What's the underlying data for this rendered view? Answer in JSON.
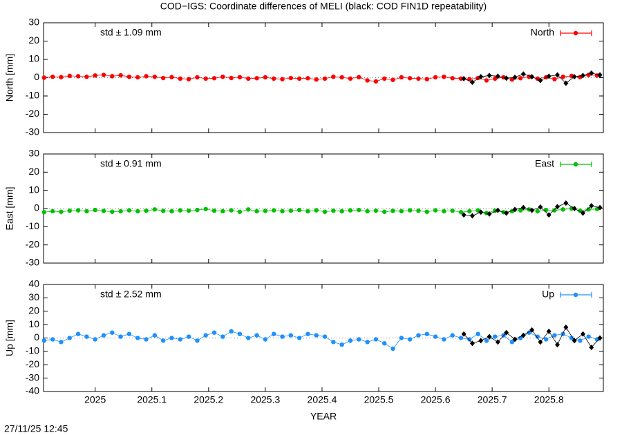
{
  "footer": "27/11/25 12:45",
  "chart_data": [
    {
      "type": "line",
      "title": "COD−IGS: Coordinate differences of MELI (black: COD FIN1D repeatability)",
      "ylabel": "North [mm]",
      "annotation": "std ± 1.09 mm",
      "annotation_color": "#ff0000",
      "xlim": [
        2024.909,
        2025.896
      ],
      "xticks": [
        2025,
        2025.1,
        2025.2,
        2025.3,
        2025.4,
        2025.5,
        2025.6,
        2025.7,
        2025.8
      ],
      "ylim": [
        -30,
        30
      ],
      "yticks": [
        -30,
        -20,
        -10,
        0,
        10,
        20,
        30
      ],
      "series": [
        {
          "name": "North",
          "color": "#ff0000",
          "x": [
            2024.91,
            2024.925,
            2024.94,
            2024.955,
            2024.97,
            2024.985,
            2025,
            2025.015,
            2025.03,
            2025.045,
            2025.06,
            2025.075,
            2025.09,
            2025.105,
            2025.12,
            2025.135,
            2025.15,
            2025.165,
            2025.18,
            2025.195,
            2025.21,
            2025.225,
            2025.24,
            2025.255,
            2025.27,
            2025.285,
            2025.3,
            2025.315,
            2025.33,
            2025.345,
            2025.36,
            2025.375,
            2025.39,
            2025.405,
            2025.42,
            2025.435,
            2025.45,
            2025.465,
            2025.48,
            2025.495,
            2025.51,
            2025.525,
            2025.54,
            2025.555,
            2025.57,
            2025.585,
            2025.6,
            2025.615,
            2025.63,
            2025.645,
            2025.66,
            2025.675,
            2025.69,
            2025.705,
            2025.72,
            2025.735,
            2025.75,
            2025.765,
            2025.78,
            2025.795,
            2025.81,
            2025.825,
            2025.84,
            2025.855,
            2025.87,
            2025.885
          ],
          "values": [
            0,
            0.5,
            0.3,
            1,
            0.8,
            0.5,
            1.2,
            1.5,
            0.8,
            1.3,
            0.5,
            0.2,
            0.8,
            0.5,
            -0.2,
            0.3,
            -0.5,
            -0.8,
            0.2,
            -0.5,
            -0.3,
            0.5,
            -0.2,
            0.3,
            -0.5,
            -0.3,
            0.2,
            -0.5,
            -0.8,
            -0.2,
            -0.5,
            -0.3,
            -1,
            -0.5,
            0.5,
            0.2,
            -0.5,
            0.3,
            -1.5,
            -2,
            -0.5,
            -1.2,
            0.2,
            -0.3,
            -0.5,
            -0.8,
            0.2,
            0.5,
            -0.3,
            -0.5,
            -0.8,
            -0.2,
            -1.5,
            -0.5,
            0.2,
            -1,
            -0.3,
            0.5,
            -0.5,
            0.2,
            -0.8,
            0.5,
            1,
            0.3,
            1.5,
            1.2
          ]
        },
        {
          "color": "#000000",
          "x": [
            2025.65,
            2025.665,
            2025.68,
            2025.695,
            2025.71,
            2025.725,
            2025.74,
            2025.755,
            2025.77,
            2025.785,
            2025.8,
            2025.815,
            2025.83,
            2025.845,
            2025.86,
            2025.875,
            2025.89
          ],
          "values": [
            -0.5,
            -2.5,
            0.5,
            1.2,
            0.8,
            -0.3,
            0.2,
            2,
            0.5,
            -1.5,
            0.8,
            1.5,
            -3,
            0.5,
            1.2,
            2.5,
            1.5
          ]
        }
      ]
    },
    {
      "type": "line",
      "ylabel": "East [mm]",
      "annotation": "std ± 0.91 mm",
      "annotation_color": "#00c000",
      "xlim": [
        2024.909,
        2025.896
      ],
      "xticks": [
        2025,
        2025.1,
        2025.2,
        2025.3,
        2025.4,
        2025.5,
        2025.6,
        2025.7,
        2025.8
      ],
      "ylim": [
        -30,
        30
      ],
      "yticks": [
        -30,
        -20,
        -10,
        0,
        10,
        20,
        30
      ],
      "series": [
        {
          "name": "East",
          "color": "#00c000",
          "x": [
            2024.91,
            2024.925,
            2024.94,
            2024.955,
            2024.97,
            2024.985,
            2025,
            2025.015,
            2025.03,
            2025.045,
            2025.06,
            2025.075,
            2025.09,
            2025.105,
            2025.12,
            2025.135,
            2025.15,
            2025.165,
            2025.18,
            2025.195,
            2025.21,
            2025.225,
            2025.24,
            2025.255,
            2025.27,
            2025.285,
            2025.3,
            2025.315,
            2025.33,
            2025.345,
            2025.36,
            2025.375,
            2025.39,
            2025.405,
            2025.42,
            2025.435,
            2025.45,
            2025.465,
            2025.48,
            2025.495,
            2025.51,
            2025.525,
            2025.54,
            2025.555,
            2025.57,
            2025.585,
            2025.6,
            2025.615,
            2025.63,
            2025.645,
            2025.66,
            2025.675,
            2025.69,
            2025.705,
            2025.72,
            2025.735,
            2025.75,
            2025.765,
            2025.78,
            2025.795,
            2025.81,
            2025.825,
            2025.84,
            2025.855,
            2025.87,
            2025.885
          ],
          "values": [
            -2,
            -1.5,
            -1.8,
            -1.2,
            -1,
            -1.5,
            -0.8,
            -1.3,
            -1.8,
            -1.5,
            -1,
            -1.5,
            -1.2,
            -0.5,
            -1.3,
            -1.5,
            -1,
            -1.2,
            -0.8,
            -0.3,
            -1.2,
            -1.5,
            -1,
            -1.8,
            -0.5,
            -1.5,
            -1.3,
            -1,
            -1.5,
            -1.2,
            -0.8,
            -1.5,
            -1,
            -1.8,
            -1.2,
            -1.5,
            -1,
            -0.8,
            -1.5,
            -1.2,
            -1.8,
            -1.3,
            -1.5,
            -1,
            -1.2,
            -1.8,
            -1,
            -1.5,
            -1.2,
            -2,
            -1.5,
            -1,
            -2.5,
            -1.2,
            -2,
            -1.5,
            -1,
            -0.5,
            -1.5,
            -0.8,
            -1,
            -0.5,
            0,
            -1.2,
            -0.5,
            -0.3
          ]
        },
        {
          "color": "#000000",
          "x": [
            2025.65,
            2025.665,
            2025.68,
            2025.695,
            2025.71,
            2025.725,
            2025.74,
            2025.755,
            2025.77,
            2025.785,
            2025.8,
            2025.815,
            2025.83,
            2025.845,
            2025.86,
            2025.875,
            2025.89
          ],
          "values": [
            -3.5,
            -4,
            -2,
            -3,
            -1,
            -2.5,
            -0.5,
            0.5,
            -1,
            0.8,
            -3.5,
            1,
            3,
            0,
            -2.5,
            1.5,
            0.5
          ]
        }
      ]
    },
    {
      "type": "line",
      "ylabel": "Up [mm]",
      "xlabel": "YEAR",
      "annotation": "std ± 2.52 mm",
      "annotation_color": "#1e90ff",
      "xlim": [
        2024.909,
        2025.896
      ],
      "xticks": [
        2025,
        2025.1,
        2025.2,
        2025.3,
        2025.4,
        2025.5,
        2025.6,
        2025.7,
        2025.8
      ],
      "ylim": [
        -40,
        40
      ],
      "yticks": [
        -40,
        -30,
        -20,
        -10,
        0,
        10,
        20,
        30,
        40
      ],
      "series": [
        {
          "name": "Up",
          "color": "#1e90ff",
          "x": [
            2024.91,
            2024.925,
            2024.94,
            2024.955,
            2024.97,
            2024.985,
            2025,
            2025.015,
            2025.03,
            2025.045,
            2025.06,
            2025.075,
            2025.09,
            2025.105,
            2025.12,
            2025.135,
            2025.15,
            2025.165,
            2025.18,
            2025.195,
            2025.21,
            2025.225,
            2025.24,
            2025.255,
            2025.27,
            2025.285,
            2025.3,
            2025.315,
            2025.33,
            2025.345,
            2025.36,
            2025.375,
            2025.39,
            2025.405,
            2025.42,
            2025.435,
            2025.45,
            2025.465,
            2025.48,
            2025.495,
            2025.51,
            2025.525,
            2025.54,
            2025.555,
            2025.57,
            2025.585,
            2025.6,
            2025.615,
            2025.63,
            2025.645,
            2025.66,
            2025.675,
            2025.69,
            2025.705,
            2025.72,
            2025.735,
            2025.75,
            2025.765,
            2025.78,
            2025.795,
            2025.81,
            2025.825,
            2025.84,
            2025.855,
            2025.87,
            2025.885
          ],
          "values": [
            -2,
            -1,
            -3,
            0,
            3,
            1,
            -1,
            2,
            4,
            1,
            3,
            0,
            -1,
            2,
            -2,
            0,
            -1,
            1,
            -2,
            2,
            4,
            1,
            5,
            3,
            0,
            2,
            -1,
            3,
            1,
            2,
            0,
            3,
            2,
            1,
            -3,
            -5,
            -2,
            -1,
            -3,
            -1,
            -4,
            -8,
            0,
            -1,
            2,
            3,
            1,
            -1,
            2,
            0,
            -1,
            3,
            -2,
            1,
            2,
            -3,
            0,
            4,
            1,
            -1,
            2,
            3,
            0,
            -2,
            1,
            -1
          ]
        },
        {
          "color": "#000000",
          "x": [
            2025.65,
            2025.665,
            2025.68,
            2025.695,
            2025.71,
            2025.725,
            2025.74,
            2025.755,
            2025.77,
            2025.785,
            2025.8,
            2025.815,
            2025.83,
            2025.845,
            2025.86,
            2025.875,
            2025.89
          ],
          "values": [
            3,
            -4,
            -2,
            1,
            -3,
            4,
            -1,
            2,
            6,
            -3,
            5,
            -5,
            8,
            -2,
            3,
            -7,
            0
          ]
        }
      ]
    }
  ]
}
